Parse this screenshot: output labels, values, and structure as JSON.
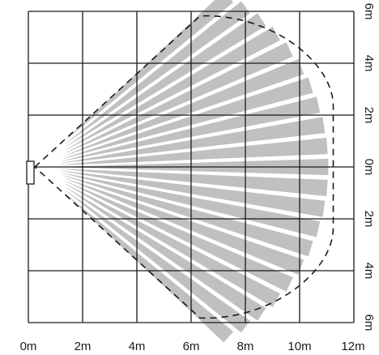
{
  "diagram": {
    "type": "pir-detection-coverage-pattern",
    "x_axis_labels": [
      "0m",
      "2m",
      "4m",
      "6m",
      "8m",
      "10m",
      "12m"
    ],
    "y_axis_labels": [
      "6m",
      "4m",
      "2m",
      "0m",
      "2m",
      "4m",
      "6m"
    ],
    "grid": {
      "columns": 6,
      "rows": 6,
      "spacing_m": 2
    },
    "coverage": {
      "range_m": 11,
      "width_m": 12,
      "zone_count": 21,
      "zone_color": "#c0c0c0",
      "outline_style": "dashed",
      "outline_color": "#1a1a1a"
    },
    "sensor": {
      "position_m": [
        0,
        0
      ],
      "icon": "sensor-icon"
    }
  }
}
